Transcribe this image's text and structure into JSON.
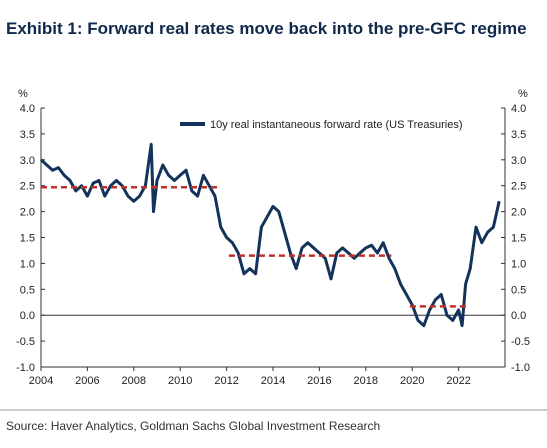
{
  "chart_data": {
    "type": "line",
    "title": "Exhibit 1: Forward real rates move back into the pre-GFC regime",
    "source": "Source: Haver Analytics, Goldman Sachs Global Investment Research",
    "y_unit": "%",
    "y2_unit": "%",
    "xlim": [
      2004,
      2024
    ],
    "xticks": [
      2004,
      2006,
      2008,
      2010,
      2012,
      2014,
      2016,
      2018,
      2020,
      2022
    ],
    "ylim": [
      -1,
      4
    ],
    "yticks": [
      {
        "value": -1,
        "label": "-1.0"
      },
      -0.5,
      {
        "value": 0,
        "label": "0.0"
      },
      0.5,
      {
        "value": 1,
        "label": "1.0"
      },
      1.5,
      {
        "value": 2,
        "label": "2.0"
      },
      2.5,
      {
        "value": 3,
        "label": "3.0"
      },
      3.5,
      {
        "value": 4,
        "label": "4.0"
      }
    ],
    "y2lim": [
      -1,
      4
    ],
    "y2ticks": [
      {
        "value": -1,
        "label": "-1.0"
      },
      -0.5,
      {
        "value": 0,
        "label": "0.0"
      },
      0.5,
      {
        "value": 1,
        "label": "1.0"
      },
      1.5,
      {
        "value": 2,
        "label": "2.0"
      },
      2.5,
      {
        "value": 3,
        "label": "3.0"
      },
      3.5,
      {
        "value": 4,
        "label": "4.0"
      }
    ],
    "legend": "upper-left",
    "series": [
      {
        "name": "10y real instantaneous forward rate (US Treasuries)",
        "color": "#13335a",
        "x": [
          2004.0,
          2004.25,
          2004.5,
          2004.75,
          2005.0,
          2005.25,
          2005.5,
          2005.75,
          2006.0,
          2006.25,
          2006.5,
          2006.75,
          2007.0,
          2007.25,
          2007.5,
          2007.75,
          2008.0,
          2008.25,
          2008.5,
          2008.75,
          2008.85,
          2009.0,
          2009.25,
          2009.5,
          2009.75,
          2010.0,
          2010.25,
          2010.5,
          2010.75,
          2011.0,
          2011.25,
          2011.5,
          2011.75,
          2012.0,
          2012.25,
          2012.5,
          2012.75,
          2013.0,
          2013.25,
          2013.5,
          2013.75,
          2014.0,
          2014.25,
          2014.5,
          2014.75,
          2015.0,
          2015.25,
          2015.5,
          2015.75,
          2016.0,
          2016.25,
          2016.5,
          2016.75,
          2017.0,
          2017.25,
          2017.5,
          2017.75,
          2018.0,
          2018.25,
          2018.5,
          2018.75,
          2019.0,
          2019.25,
          2019.5,
          2019.75,
          2020.0,
          2020.25,
          2020.5,
          2020.75,
          2021.0,
          2021.25,
          2021.5,
          2021.75,
          2022.0,
          2022.15,
          2022.3,
          2022.5,
          2022.75,
          2023.0,
          2023.25,
          2023.5,
          2023.75
        ],
        "values": [
          3.0,
          2.9,
          2.8,
          2.85,
          2.7,
          2.6,
          2.4,
          2.5,
          2.3,
          2.55,
          2.6,
          2.3,
          2.5,
          2.6,
          2.5,
          2.3,
          2.2,
          2.3,
          2.5,
          3.3,
          2.0,
          2.6,
          2.9,
          2.7,
          2.6,
          2.7,
          2.8,
          2.4,
          2.3,
          2.7,
          2.5,
          2.3,
          1.7,
          1.5,
          1.4,
          1.2,
          0.8,
          0.9,
          0.8,
          1.7,
          1.9,
          2.1,
          2.0,
          1.6,
          1.2,
          0.9,
          1.3,
          1.4,
          1.3,
          1.2,
          1.1,
          0.7,
          1.2,
          1.3,
          1.2,
          1.1,
          1.2,
          1.3,
          1.35,
          1.2,
          1.4,
          1.1,
          0.9,
          0.6,
          0.4,
          0.2,
          -0.1,
          -0.2,
          0.1,
          0.3,
          0.4,
          0.0,
          -0.1,
          0.1,
          -0.2,
          0.6,
          0.9,
          1.7,
          1.4,
          1.6,
          1.7,
          2.2
        ]
      }
    ],
    "reference_lines": [
      {
        "start": 2004.0,
        "end": 2011.7,
        "value": 2.47,
        "color": "#c0302b"
      },
      {
        "start": 2012.1,
        "end": 2019.1,
        "value": 1.15,
        "color": "#c0302b"
      },
      {
        "start": 2019.9,
        "end": 2022.4,
        "value": 0.17,
        "color": "#c0302b"
      }
    ]
  }
}
